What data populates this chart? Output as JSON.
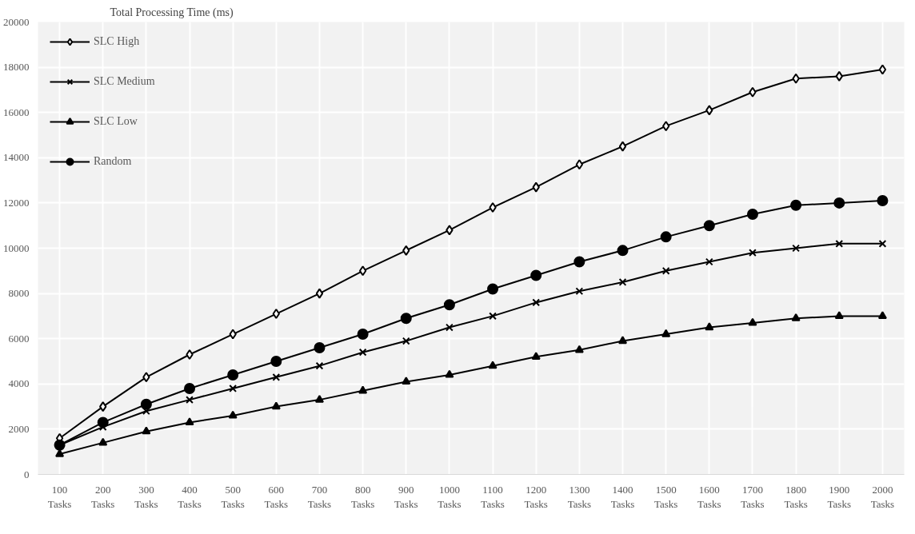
{
  "chart_data": {
    "type": "line",
    "ylabel": "Total Processing Time (ms)",
    "categories": [
      "100 Tasks",
      "200 Tasks",
      "300 Tasks",
      "400 Tasks",
      "500 Tasks",
      "600 Tasks",
      "700 Tasks",
      "800 Tasks",
      "900 Tasks",
      "1000 Tasks",
      "1100 Tasks",
      "1200 Tasks",
      "1300 Tasks",
      "1400 Tasks",
      "1500 Tasks",
      "1600 Tasks",
      "1700 Tasks",
      "1800 Tasks",
      "1900 Tasks",
      "2000 Tasks"
    ],
    "series": [
      {
        "name": "SLC High",
        "color": "#000000",
        "marker": "diamond",
        "values": [
          1600,
          3000,
          4300,
          5300,
          6200,
          7100,
          8000,
          9000,
          9900,
          10800,
          11800,
          12700,
          13700,
          14500,
          15400,
          16100,
          16900,
          17500,
          17600,
          17900
        ]
      },
      {
        "name": "SLC Medium",
        "color": "#000000",
        "marker": "cross",
        "values": [
          1300,
          2100,
          2800,
          3300,
          3800,
          4300,
          4800,
          5400,
          5900,
          6500,
          7000,
          7600,
          8100,
          8500,
          9000,
          9400,
          9800,
          10000,
          10200,
          10200
        ]
      },
      {
        "name": "SLC Low",
        "color": "#000000",
        "marker": "triangle",
        "values": [
          900,
          1400,
          1900,
          2300,
          2600,
          3000,
          3300,
          3700,
          4100,
          4400,
          4800,
          5200,
          5500,
          5900,
          6200,
          6500,
          6700,
          6900,
          7000,
          7000
        ]
      },
      {
        "name": "Random",
        "color": "#000000",
        "marker": "circle",
        "values": [
          1300,
          2300,
          3100,
          3800,
          4400,
          5000,
          5600,
          6200,
          6900,
          7500,
          8200,
          8800,
          9400,
          9900,
          10500,
          11000,
          11500,
          11900,
          12000,
          12100
        ]
      }
    ],
    "ylim": [
      0,
      20000
    ],
    "yticks": [
      0,
      2000,
      4000,
      6000,
      8000,
      10000,
      12000,
      14000,
      16000,
      18000,
      20000
    ],
    "grid": true,
    "legend": "top left",
    "line_style": "solid"
  }
}
